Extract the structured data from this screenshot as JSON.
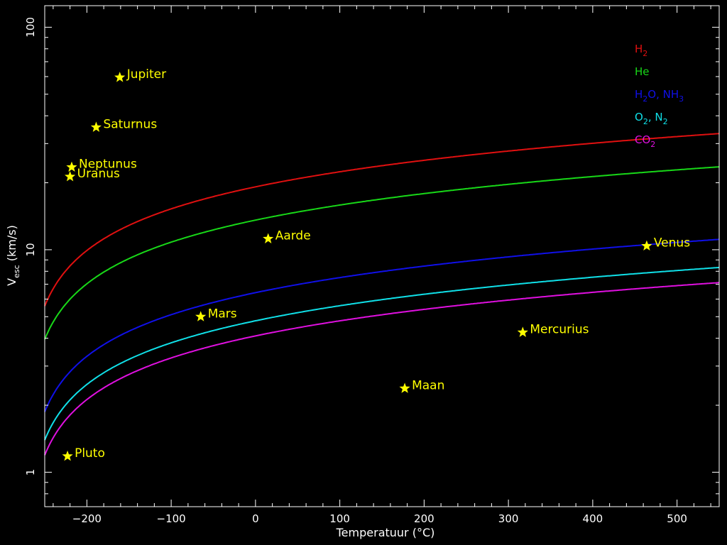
{
  "chart_data": {
    "type": "line",
    "xlabel": "Temperatuur (°C)",
    "ylabel": {
      "main": "V",
      "sub": "esc",
      "rest": " (km/s)"
    },
    "xlim": [
      -250,
      550
    ],
    "ylim": [
      0.7,
      125
    ],
    "yscale": "log",
    "x_ticks": [
      -200,
      -100,
      0,
      100,
      200,
      300,
      400,
      500
    ],
    "x_tick_labels": [
      "−200",
      "−100",
      "0",
      "100",
      "200",
      "300",
      "400",
      "500"
    ],
    "y_ticks": [
      1,
      10,
      100
    ],
    "y_tick_labels": [
      "1",
      "10",
      "100"
    ],
    "legend_position": "top-right",
    "series": [
      {
        "name": "H2",
        "label": {
          "main": "H",
          "sub": "2",
          "rest": ""
        },
        "color": "#e01010",
        "k": 1.16
      },
      {
        "name": "He",
        "label": {
          "main": "He",
          "sub": "",
          "rest": ""
        },
        "color": "#18d818",
        "k": 0.822
      },
      {
        "name": "H2O, NH3",
        "label": {
          "main": "H",
          "sub": "2",
          "rest": "O, NH",
          "sub2": "3"
        },
        "color": "#1010e8",
        "k": 0.388
      },
      {
        "name": "O2, N2",
        "label": {
          "main": "O",
          "sub": "2",
          "rest": ", N",
          "sub2": "2"
        },
        "color": "#10e0e8",
        "k": 0.29
      },
      {
        "name": "CO2",
        "label": {
          "main": "CO",
          "sub": "2",
          "rest": ""
        },
        "color": "#e010e0",
        "k": 0.248
      }
    ],
    "points": [
      {
        "name": "Jupiter",
        "x": -161,
        "y": 59.5
      },
      {
        "name": "Saturnus",
        "x": -189,
        "y": 35.5
      },
      {
        "name": "Neptunus",
        "x": -218,
        "y": 23.5
      },
      {
        "name": "Uranus",
        "x": -220,
        "y": 21.3
      },
      {
        "name": "Aarde",
        "x": 15,
        "y": 11.2
      },
      {
        "name": "Venus",
        "x": 464,
        "y": 10.4
      },
      {
        "name": "Mars",
        "x": -65,
        "y": 5.0
      },
      {
        "name": "Mercurius",
        "x": 317,
        "y": 4.25
      },
      {
        "name": "Maan",
        "x": 177,
        "y": 2.38
      },
      {
        "name": "Pluto",
        "x": -223,
        "y": 1.18
      }
    ],
    "point_color": "#ffff00"
  }
}
